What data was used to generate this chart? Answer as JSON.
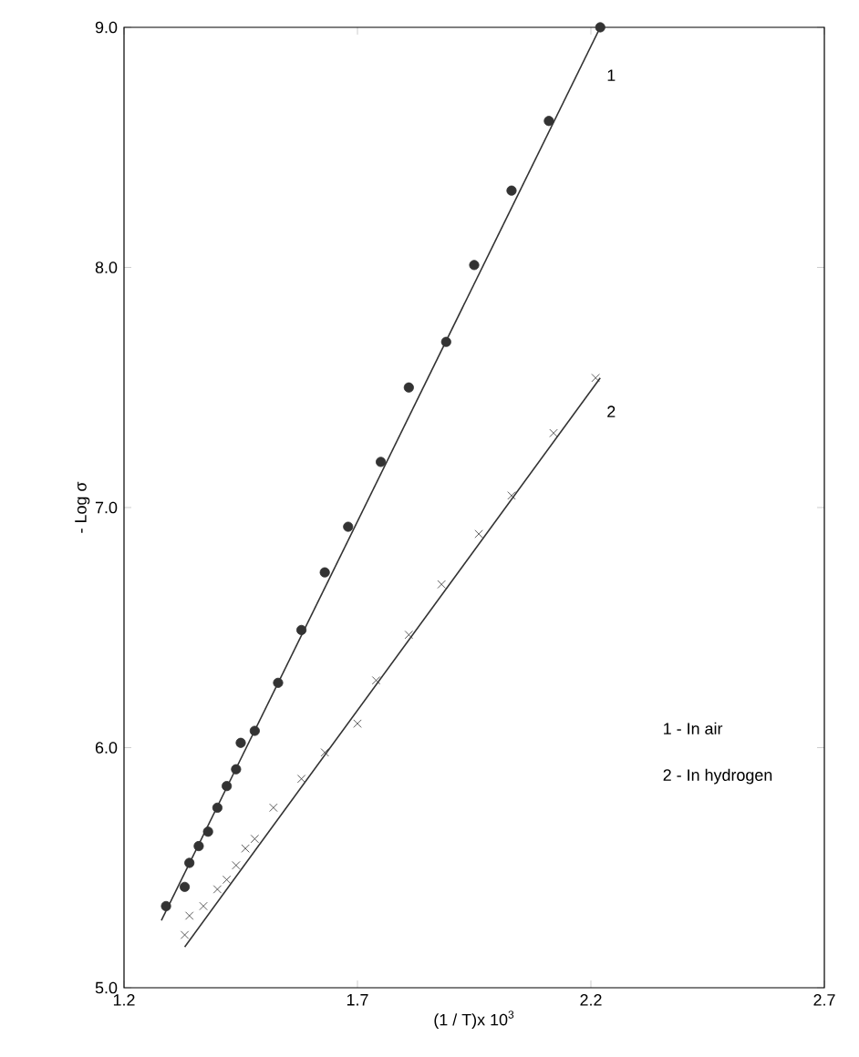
{
  "chart_data": {
    "type": "scatter",
    "xlabel": "(1 / T)x 10$^{3}$",
    "ylabel": "- Log σ",
    "xlim": [
      1.2,
      2.7
    ],
    "ylim": [
      5.0,
      9.0
    ],
    "xticks": [
      1.2,
      1.7,
      2.2,
      2.7
    ],
    "yticks": [
      {
        "value": 5,
        "label": "5.0"
      },
      {
        "value": 6,
        "label": "6.0"
      },
      {
        "value": 7,
        "label": "7.0"
      },
      {
        "value": 8,
        "label": "8.0"
      },
      {
        "value": 9,
        "label": "9.0"
      }
    ],
    "grid": false,
    "series": [
      {
        "marker": "circle",
        "color": "#333333",
        "x": [
          1.29,
          1.33,
          1.34,
          1.36,
          1.38,
          1.4,
          1.42,
          1.44,
          1.45,
          1.48,
          1.53,
          1.58,
          1.63,
          1.68,
          1.75,
          1.81,
          1.89,
          1.95,
          2.03,
          2.11,
          2.22
        ],
        "values": [
          5.34,
          5.42,
          5.52,
          5.59,
          5.65,
          5.75,
          5.84,
          5.91,
          6.02,
          6.07,
          6.27,
          6.49,
          6.73,
          6.92,
          7.19,
          7.5,
          7.69,
          8.01,
          8.32,
          8.61,
          9.0
        ]
      },
      {
        "marker": "cross",
        "color": "#333333",
        "x": [
          1.33,
          1.34,
          1.37,
          1.4,
          1.42,
          1.44,
          1.46,
          1.48,
          1.52,
          1.58,
          1.63,
          1.7,
          1.74,
          1.81,
          1.88,
          1.96,
          2.03,
          2.12,
          2.21
        ],
        "values": [
          5.22,
          5.3,
          5.34,
          5.41,
          5.45,
          5.51,
          5.58,
          5.62,
          5.75,
          5.87,
          5.98,
          6.1,
          6.28,
          6.47,
          6.68,
          6.89,
          7.05,
          7.31,
          7.54
        ]
      },
      {
        "type": "line",
        "marker": "none",
        "line_style": "solid",
        "color": "#333333",
        "x": [
          1.28,
          2.22
        ],
        "values": [
          5.28,
          9.0
        ]
      },
      {
        "type": "line",
        "marker": "none",
        "line_style": "solid",
        "color": "#333333",
        "x": [
          1.33,
          2.22
        ],
        "values": [
          5.17,
          7.54
        ]
      }
    ],
    "annotations": [
      "1",
      "2",
      "1 - In air",
      "2 - In hydrogen"
    ]
  }
}
